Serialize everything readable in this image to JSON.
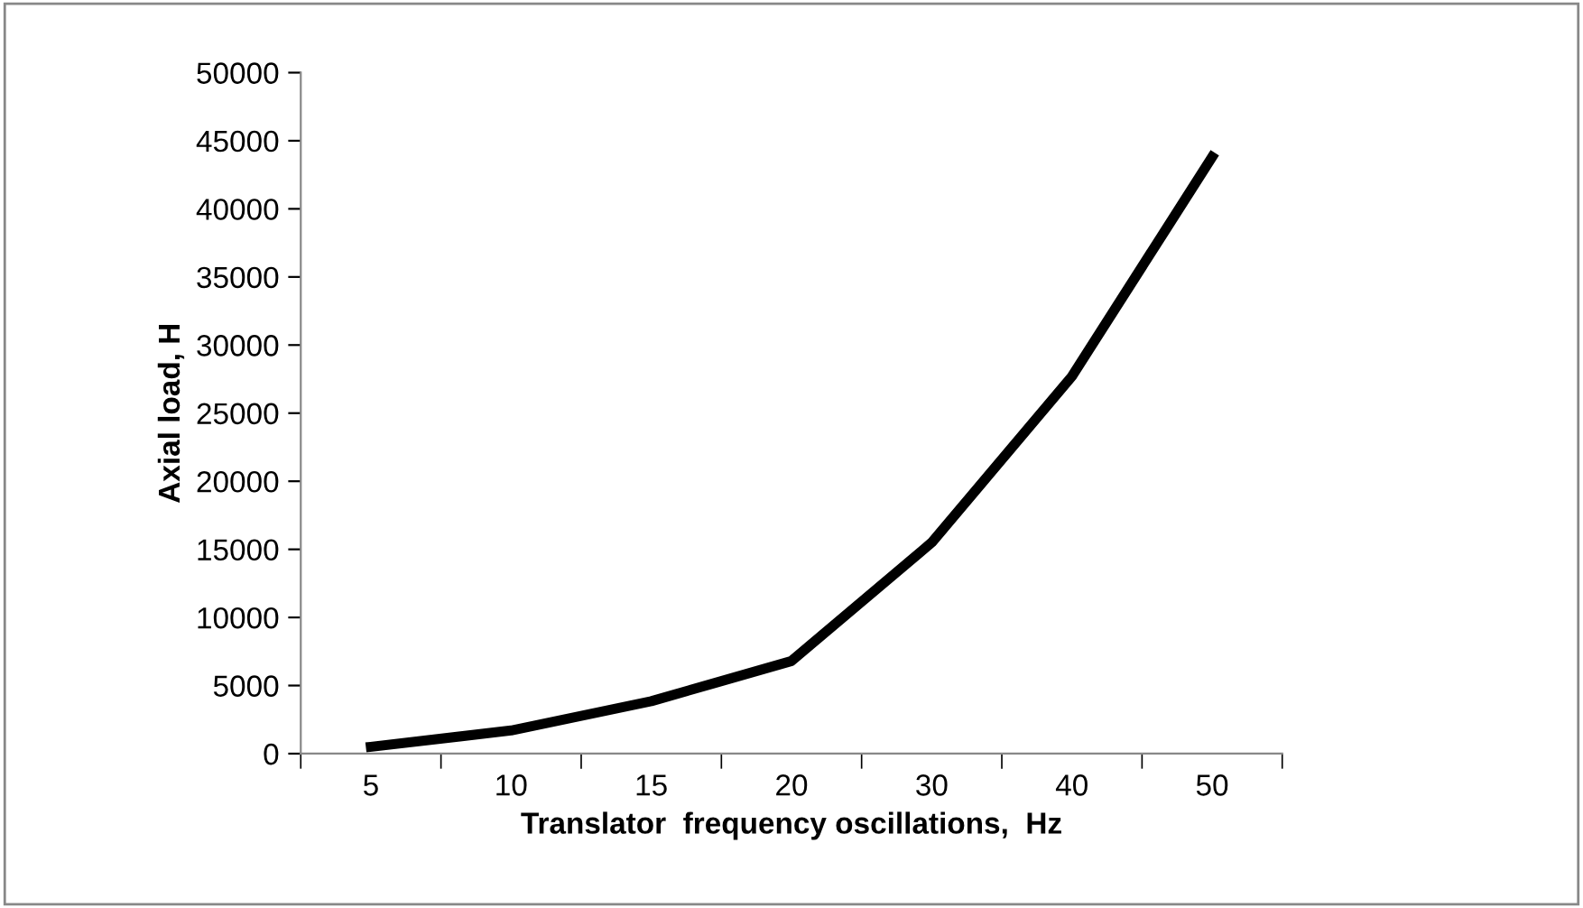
{
  "chart_data": {
    "type": "line",
    "xlabel": "Translator  frequency oscillations,  Hz",
    "ylabel": "Axial load, H",
    "categories": [
      "5",
      "10",
      "15",
      "20",
      "30",
      "40",
      "50"
    ],
    "series": [
      {
        "color": "#000000",
        "values": [
          500,
          1700,
          3850,
          6800,
          15500,
          27700,
          43800
        ]
      }
    ],
    "ylim": [
      0,
      50000
    ],
    "yticks": [
      0,
      5000,
      10000,
      15000,
      20000,
      25000,
      30000,
      35000,
      40000,
      45000,
      50000
    ],
    "grid": false,
    "legend": false,
    "marker": "none",
    "line_style": "solid"
  }
}
